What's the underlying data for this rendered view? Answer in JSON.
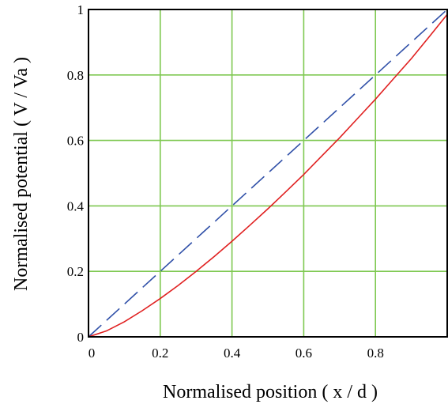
{
  "chart_data": {
    "type": "line",
    "xlabel": "Normalised position ( x / d )",
    "ylabel": "Normalised potential ( V / Va )",
    "xlim": [
      0,
      1
    ],
    "ylim": [
      0,
      1
    ],
    "x_ticks": [
      "0",
      "0.2",
      "0.4",
      "0.6",
      "0.8"
    ],
    "y_ticks": [
      "0",
      "0.2",
      "0.4",
      "0.6",
      "0.8",
      "1"
    ],
    "grid": true,
    "grid_color": "#7ec850",
    "series": [
      {
        "style": "dashed",
        "color": "#3050a8",
        "x": [
          0,
          0.2,
          0.4,
          0.6,
          0.8,
          1.0
        ],
        "y": [
          0,
          0.2,
          0.4,
          0.6,
          0.8,
          1.0
        ]
      },
      {
        "style": "solid",
        "color": "#e02020",
        "x": [
          0,
          0.05,
          0.1,
          0.15,
          0.2,
          0.25,
          0.3,
          0.35,
          0.4,
          0.45,
          0.5,
          0.55,
          0.6,
          0.65,
          0.7,
          0.75,
          0.8,
          0.85,
          0.9,
          0.95,
          1.0
        ],
        "y": [
          0,
          0.018,
          0.046,
          0.08,
          0.117,
          0.157,
          0.2,
          0.245,
          0.292,
          0.341,
          0.391,
          0.443,
          0.496,
          0.552,
          0.608,
          0.667,
          0.726,
          0.788,
          0.85,
          0.917,
          0.985
        ]
      }
    ]
  }
}
